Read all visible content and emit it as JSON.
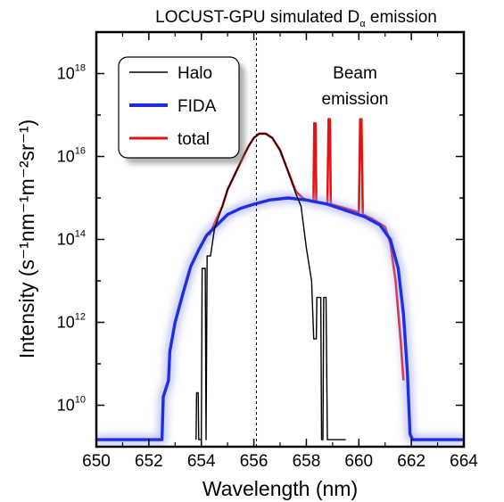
{
  "chart_data": {
    "type": "line",
    "title": "LOCUST-GPU simulated D",
    "title_sub": "α",
    "title_suffix": " emission",
    "xlabel": "Wavelength (nm)",
    "ylabel": "Intensity (s⁻¹nm⁻¹m⁻²sr⁻¹)",
    "y_scale": "log",
    "xlim": [
      650,
      664
    ],
    "ylim_exp": [
      9,
      19
    ],
    "x_ticks": [
      "650",
      "652",
      "654",
      "656",
      "658",
      "660",
      "662",
      "664"
    ],
    "y_ticks": [
      {
        "base": "10",
        "exp": "10"
      },
      {
        "base": "10",
        "exp": "12"
      },
      {
        "base": "10",
        "exp": "14"
      },
      {
        "base": "10",
        "exp": "16"
      },
      {
        "base": "10",
        "exp": "18"
      }
    ],
    "vline_x": 656.1,
    "annotation": [
      "Beam",
      "emission"
    ],
    "legend_position": "top-left",
    "legend": [
      "Halo",
      "FIDA",
      "total"
    ],
    "series": [
      {
        "name": "total",
        "color": "#e41414",
        "log10_values": [
          [
            654.3,
            14.1
          ],
          [
            654.8,
            14.8
          ],
          [
            655.0,
            15.2
          ],
          [
            655.3,
            15.6
          ],
          [
            655.6,
            16.0
          ],
          [
            655.8,
            16.25
          ],
          [
            656.0,
            16.45
          ],
          [
            656.2,
            16.55
          ],
          [
            656.45,
            16.55
          ],
          [
            656.7,
            16.45
          ],
          [
            657.0,
            16.15
          ],
          [
            657.3,
            15.65
          ],
          [
            657.6,
            15.15
          ],
          [
            657.9,
            14.98
          ],
          [
            658.2,
            14.92
          ],
          [
            658.27,
            14.92
          ],
          [
            658.3,
            16.8
          ],
          [
            658.35,
            16.8
          ],
          [
            658.38,
            14.9
          ],
          [
            658.8,
            14.85
          ],
          [
            658.85,
            16.9
          ],
          [
            658.9,
            16.9
          ],
          [
            658.93,
            14.85
          ],
          [
            659.5,
            14.75
          ],
          [
            660.0,
            14.65
          ],
          [
            660.05,
            16.9
          ],
          [
            660.1,
            16.9
          ],
          [
            660.15,
            14.6
          ],
          [
            660.5,
            14.5
          ],
          [
            661.0,
            14.3
          ],
          [
            661.2,
            13.9
          ],
          [
            661.4,
            13.0
          ],
          [
            661.6,
            11.5
          ],
          [
            661.7,
            10.6
          ]
        ]
      },
      {
        "name": "FIDA",
        "color": "#1f2fe0",
        "log10_values": [
          [
            650.0,
            9.17
          ],
          [
            652.5,
            9.17
          ],
          [
            652.55,
            10.2
          ],
          [
            652.75,
            10.6
          ],
          [
            652.8,
            11.3
          ],
          [
            653.0,
            12.0
          ],
          [
            653.3,
            12.7
          ],
          [
            653.6,
            13.35
          ],
          [
            653.9,
            13.75
          ],
          [
            654.2,
            14.1
          ],
          [
            654.6,
            14.35
          ],
          [
            655.0,
            14.6
          ],
          [
            655.5,
            14.75
          ],
          [
            656.0,
            14.85
          ],
          [
            656.6,
            14.95
          ],
          [
            657.3,
            15.0
          ],
          [
            658.0,
            14.95
          ],
          [
            658.8,
            14.85
          ],
          [
            659.5,
            14.7
          ],
          [
            660.2,
            14.55
          ],
          [
            660.8,
            14.35
          ],
          [
            661.2,
            14.0
          ],
          [
            661.5,
            13.3
          ],
          [
            661.7,
            12.2
          ],
          [
            661.85,
            10.8
          ],
          [
            661.95,
            9.3
          ],
          [
            662.05,
            9.17
          ],
          [
            664.0,
            9.17
          ]
        ]
      },
      {
        "name": "Halo",
        "color": "#000000",
        "log10_values": [
          [
            653.8,
            9.17
          ],
          [
            653.82,
            10.3
          ],
          [
            653.88,
            10.3
          ],
          [
            653.9,
            9.17
          ],
          [
            654.0,
            9.17
          ],
          [
            654.03,
            13.3
          ],
          [
            654.15,
            13.3
          ],
          [
            654.18,
            9.17
          ],
          [
            654.22,
            13.6
          ],
          [
            654.35,
            13.6
          ],
          [
            654.5,
            14.25
          ],
          [
            654.8,
            14.8
          ],
          [
            655.0,
            15.2
          ],
          [
            655.3,
            15.6
          ],
          [
            655.6,
            16.0
          ],
          [
            655.8,
            16.25
          ],
          [
            656.0,
            16.45
          ],
          [
            656.2,
            16.55
          ],
          [
            656.45,
            16.55
          ],
          [
            656.7,
            16.45
          ],
          [
            657.0,
            16.15
          ],
          [
            657.3,
            15.65
          ],
          [
            657.6,
            15.1
          ],
          [
            657.8,
            14.8
          ],
          [
            658.0,
            13.8
          ],
          [
            658.2,
            13.0
          ],
          [
            658.28,
            11.6
          ],
          [
            658.38,
            11.6
          ],
          [
            658.4,
            12.6
          ],
          [
            658.55,
            12.6
          ],
          [
            658.58,
            9.17
          ],
          [
            658.63,
            9.17
          ],
          [
            658.66,
            12.6
          ],
          [
            658.75,
            12.6
          ],
          [
            658.8,
            9.17
          ],
          [
            659.5,
            9.17
          ]
        ]
      }
    ]
  }
}
